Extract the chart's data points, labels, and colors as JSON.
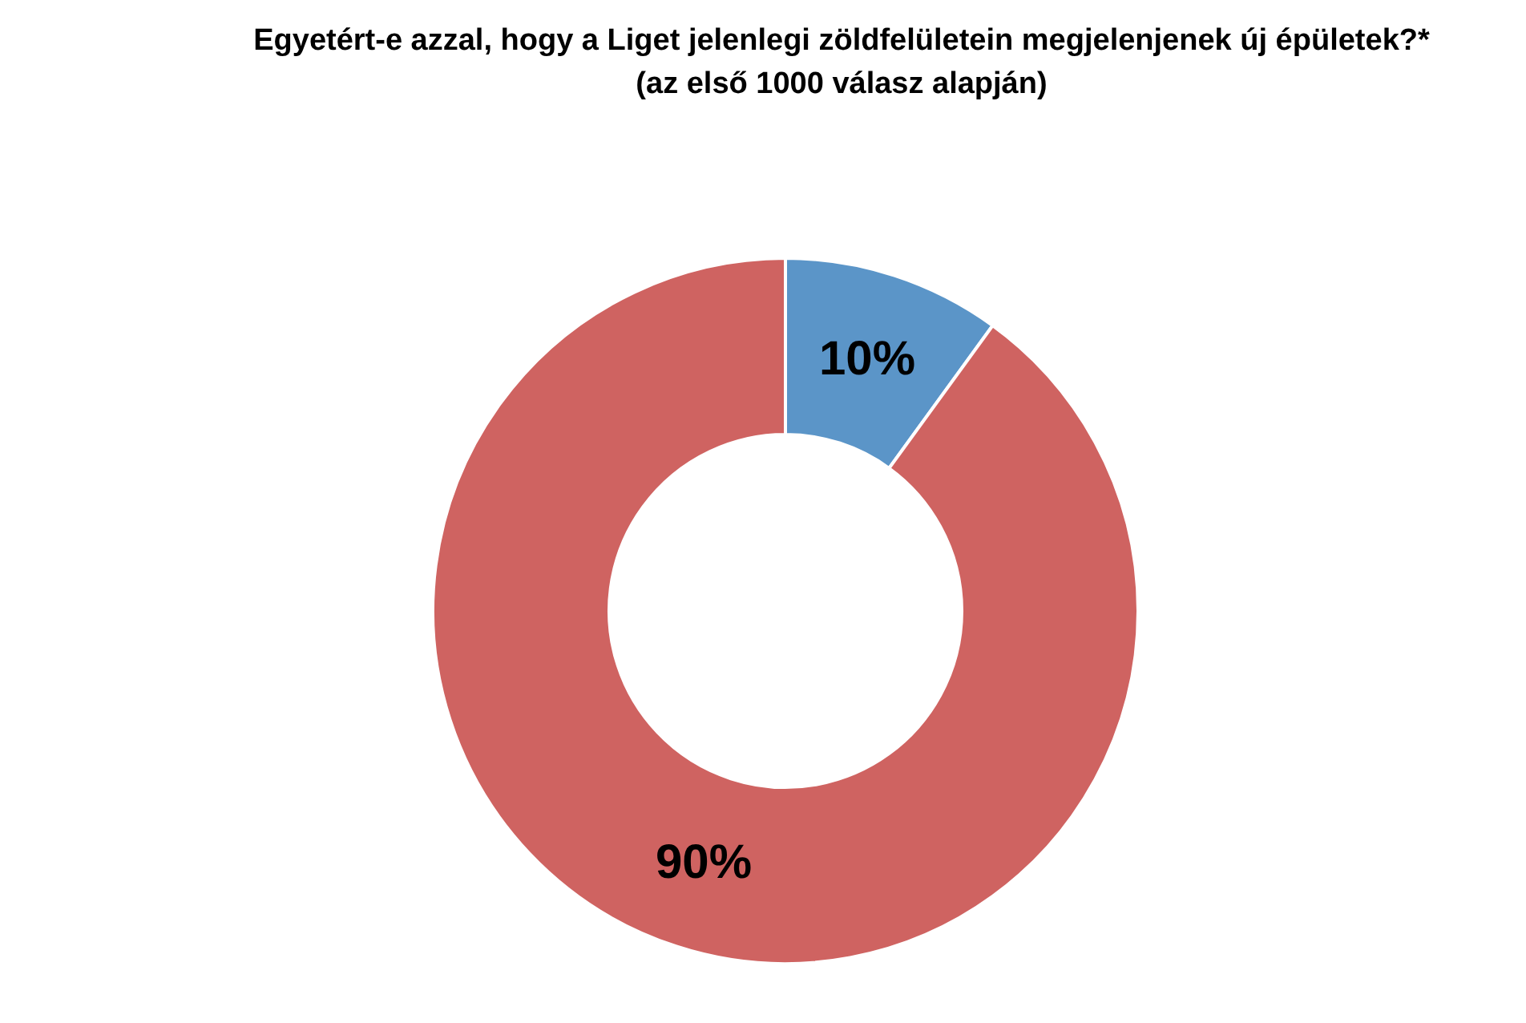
{
  "chart_data": {
    "type": "donut",
    "title": "Egyetért-e azzal, hogy a Liget jelenlegi zöldfelületein megjelenjenek új épületek?*",
    "subtitle": "(az első 1000 válasz alapján)",
    "categories": [
      null,
      null
    ],
    "values": [
      10,
      90
    ],
    "colors": [
      "#5b95c8",
      "#cf6361"
    ],
    "value_labels": [
      "10%",
      "90%"
    ],
    "legend": false
  }
}
